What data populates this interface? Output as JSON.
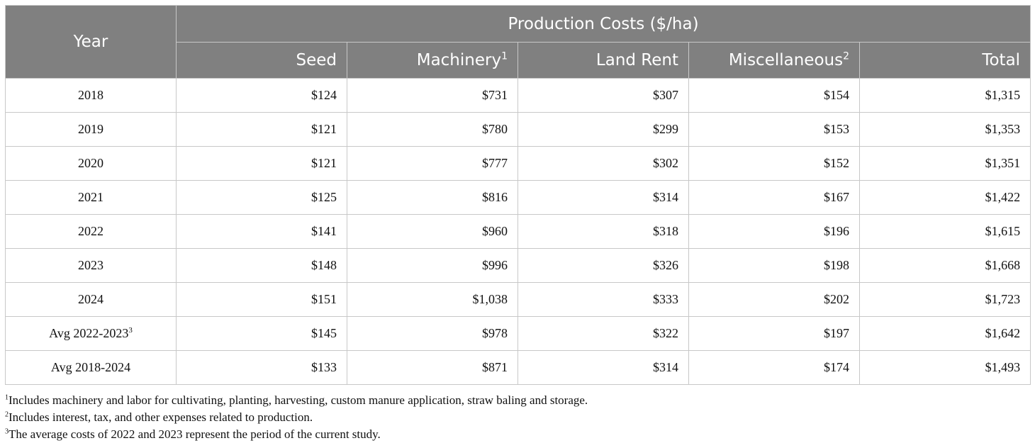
{
  "table": {
    "year_header": "Year",
    "group_header": "Production Costs ($/ha)",
    "columns": [
      {
        "label": "Seed",
        "sup": ""
      },
      {
        "label": "Machinery",
        "sup": "1"
      },
      {
        "label": "Land Rent",
        "sup": ""
      },
      {
        "label": "Miscellaneous",
        "sup": "2"
      },
      {
        "label": "Total",
        "sup": ""
      }
    ],
    "rows": [
      {
        "year": "2018",
        "sup": "",
        "values": [
          "$124",
          "$731",
          "$307",
          "$154",
          "$1,315"
        ]
      },
      {
        "year": "2019",
        "sup": "",
        "values": [
          "$121",
          "$780",
          "$299",
          "$153",
          "$1,353"
        ]
      },
      {
        "year": "2020",
        "sup": "",
        "values": [
          "$121",
          "$777",
          "$302",
          "$152",
          "$1,351"
        ]
      },
      {
        "year": "2021",
        "sup": "",
        "values": [
          "$125",
          "$816",
          "$314",
          "$167",
          "$1,422"
        ]
      },
      {
        "year": "2022",
        "sup": "",
        "values": [
          "$141",
          "$960",
          "$318",
          "$196",
          "$1,615"
        ]
      },
      {
        "year": "2023",
        "sup": "",
        "values": [
          "$148",
          "$996",
          "$326",
          "$198",
          "$1,668"
        ]
      },
      {
        "year": "2024",
        "sup": "",
        "values": [
          "$151",
          "$1,038",
          "$333",
          "$202",
          "$1,723"
        ]
      },
      {
        "year": "Avg 2022-2023",
        "sup": "3",
        "values": [
          "$145",
          "$978",
          "$322",
          "$197",
          "$1,642"
        ]
      },
      {
        "year": "Avg 2018-2024",
        "sup": "",
        "values": [
          "$133",
          "$871",
          "$314",
          "$174",
          "$1,493"
        ]
      }
    ]
  },
  "footnotes": [
    {
      "mark": "1",
      "text": "Includes machinery and labor for cultivating, planting, harvesting, custom manure application, straw baling and storage."
    },
    {
      "mark": "2",
      "text": "Includes interest, tax, and other expenses related to production."
    },
    {
      "mark": "3",
      "text": "The average costs of 2022 and 2023 represent the period of the current study."
    }
  ],
  "colors": {
    "header_bg": "#808080",
    "header_text": "#ffffff",
    "border": "#c8c8c8"
  }
}
